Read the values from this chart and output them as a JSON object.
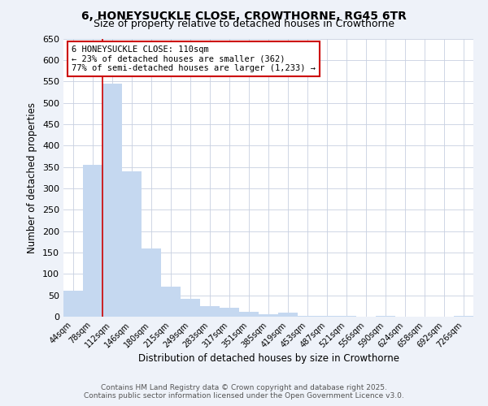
{
  "title_line1": "6, HONEYSUCKLE CLOSE, CROWTHORNE, RG45 6TR",
  "title_line2": "Size of property relative to detached houses in Crowthorne",
  "xlabel": "Distribution of detached houses by size in Crowthorne",
  "ylabel": "Number of detached properties",
  "categories": [
    "44sqm",
    "78sqm",
    "112sqm",
    "146sqm",
    "180sqm",
    "215sqm",
    "249sqm",
    "283sqm",
    "317sqm",
    "351sqm",
    "385sqm",
    "419sqm",
    "453sqm",
    "487sqm",
    "521sqm",
    "556sqm",
    "590sqm",
    "624sqm",
    "658sqm",
    "692sqm",
    "726sqm"
  ],
  "values": [
    60,
    355,
    545,
    340,
    160,
    70,
    42,
    25,
    20,
    12,
    6,
    10,
    2,
    2,
    2,
    0,
    2,
    0,
    0,
    0,
    2
  ],
  "bar_color": "#c5d8f0",
  "bar_edge_color": "none",
  "red_line_index": 2,
  "annotation_line1": "6 HONEYSUCKLE CLOSE: 110sqm",
  "annotation_line2": "← 23% of detached houses are smaller (362)",
  "annotation_line3": "77% of semi-detached houses are larger (1,233) →",
  "annotation_box_color": "#ffffff",
  "annotation_box_edge_color": "#cc0000",
  "ylim": [
    0,
    650
  ],
  "yticks": [
    0,
    50,
    100,
    150,
    200,
    250,
    300,
    350,
    400,
    450,
    500,
    550,
    600,
    650
  ],
  "footer_line1": "Contains HM Land Registry data © Crown copyright and database right 2025.",
  "footer_line2": "Contains public sector information licensed under the Open Government Licence v3.0.",
  "bg_color": "#eef2f9",
  "plot_bg_color": "#ffffff",
  "grid_color": "#c8d0e0"
}
